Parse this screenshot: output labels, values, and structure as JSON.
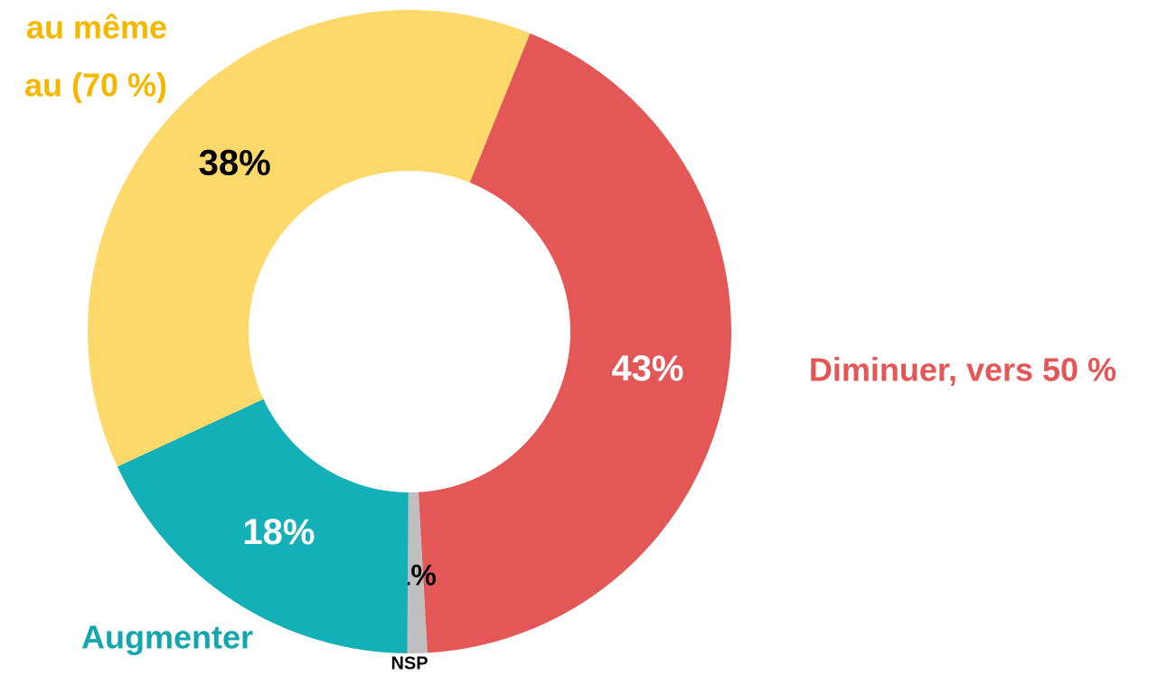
{
  "chart_data": {
    "type": "pie",
    "categories": [
      [
        "Diminuer, vers 50 %"
      ],
      [
        "NSP"
      ],
      [
        "Augmenter"
      ],
      [
        "au même",
        "au (70 %)"
      ]
    ],
    "values": [
      43,
      1,
      18,
      38
    ],
    "value_labels": [
      "43%",
      "1%",
      "18%",
      "38%"
    ],
    "colors": [
      "#e35757",
      "#bfbfbf",
      "#14b0b8",
      "#fdd86a"
    ],
    "label_colors": [
      "#e35757",
      "#000000",
      "#14a6ae",
      "#f5b800"
    ],
    "value_label_colors": [
      "#ffffff",
      "#000000",
      "#ffffff",
      "#000000"
    ],
    "donut": true
  }
}
